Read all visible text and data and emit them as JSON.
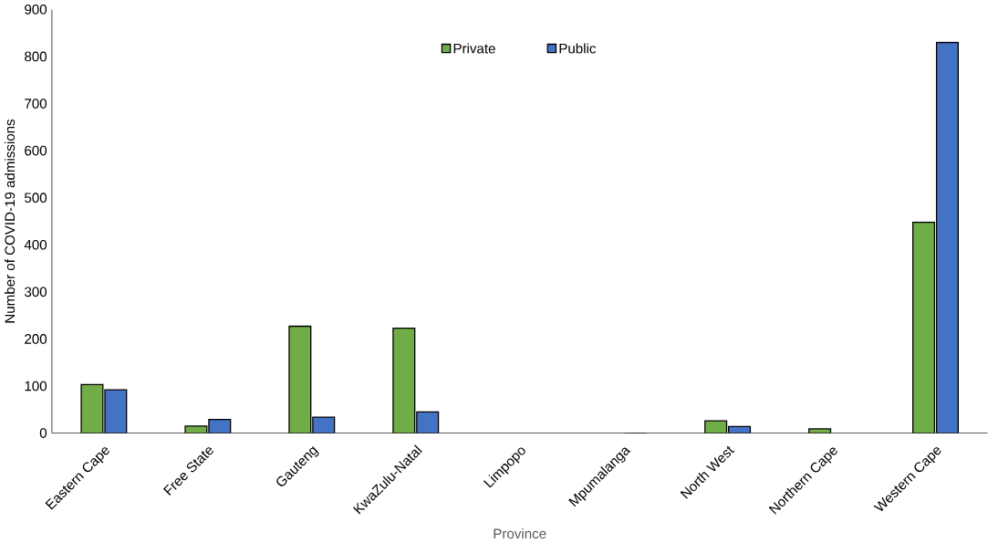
{
  "chart_data": {
    "type": "bar",
    "xlabel": "Province",
    "ylabel": "Number of COVID-19 admissions",
    "categories": [
      "Eastern Cape",
      "Free State",
      "Gauteng",
      "KwaZulu-Natal",
      "Limpopo",
      "Mpumalanga",
      "North West",
      "Northern Cape",
      "Western Cape"
    ],
    "series": [
      {
        "name": "Private",
        "color": "#70ad47",
        "values": [
          103,
          15,
          227,
          223,
          null,
          null,
          26,
          9,
          448
        ]
      },
      {
        "name": "Public",
        "color": "#4472c4",
        "values": [
          92,
          29,
          34,
          45,
          null,
          0,
          14,
          null,
          830
        ]
      }
    ],
    "ylim": [
      0,
      900
    ],
    "yticks": [
      0,
      100,
      200,
      300,
      400,
      500,
      600,
      700,
      800,
      900
    ],
    "grid": false,
    "legend": "top"
  }
}
